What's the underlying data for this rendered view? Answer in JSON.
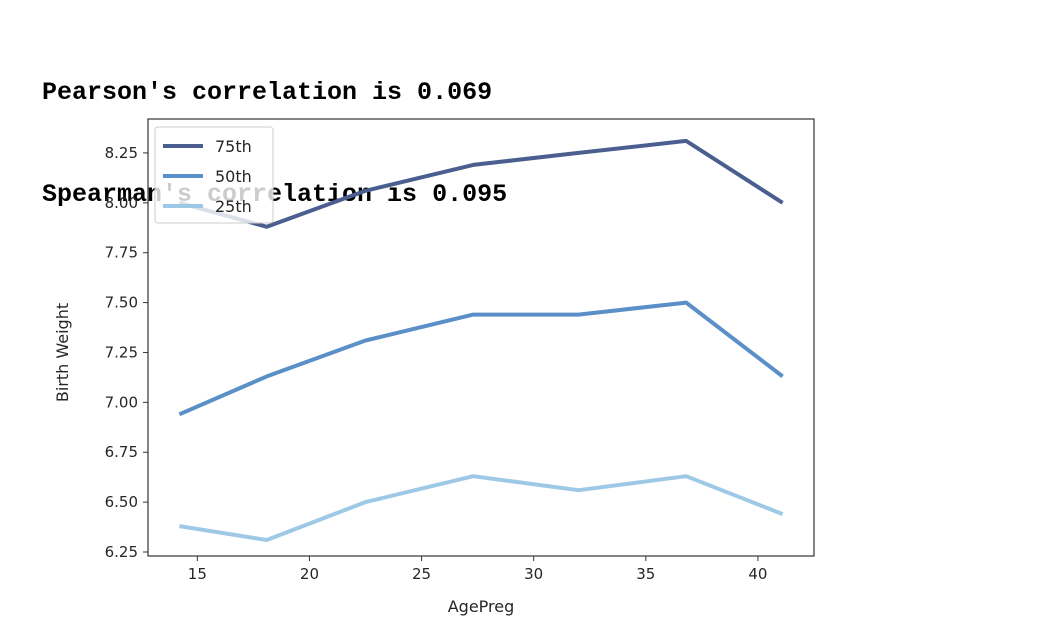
{
  "output_lines": [
    "Pearson's correlation is 0.069",
    "Spearman's correlation is 0.095"
  ],
  "chart_data": {
    "type": "line",
    "xlabel": "AgePreg",
    "ylabel": "Birth Weight",
    "xlim": [
      12.8,
      42.5
    ],
    "ylim": [
      6.23,
      8.42
    ],
    "xticks": [
      15,
      20,
      25,
      30,
      35,
      40
    ],
    "xtick_labels": [
      "15",
      "20",
      "25",
      "30",
      "35",
      "40"
    ],
    "yticks": [
      6.25,
      6.5,
      6.75,
      7.0,
      7.25,
      7.5,
      7.75,
      8.0,
      8.25
    ],
    "ytick_labels": [
      "6.25",
      "6.50",
      "6.75",
      "7.00",
      "7.25",
      "7.50",
      "7.75",
      "8.00",
      "8.25"
    ],
    "grid": false,
    "legend_position": "upper-left",
    "x": [
      14.2,
      18.1,
      22.5,
      27.3,
      32.0,
      36.8,
      41.1
    ],
    "series": [
      {
        "name": "75th",
        "color": "#4a5f8f",
        "values": [
          8.0,
          7.88,
          8.06,
          8.19,
          8.25,
          8.31,
          8.0
        ]
      },
      {
        "name": "50th",
        "color": "#5b8fc7",
        "values": [
          6.94,
          7.13,
          7.31,
          7.44,
          7.44,
          7.5,
          7.13
        ]
      },
      {
        "name": "25th",
        "color": "#9ec9e6",
        "values": [
          6.38,
          6.31,
          6.5,
          6.63,
          6.56,
          6.63,
          6.44
        ]
      }
    ]
  }
}
